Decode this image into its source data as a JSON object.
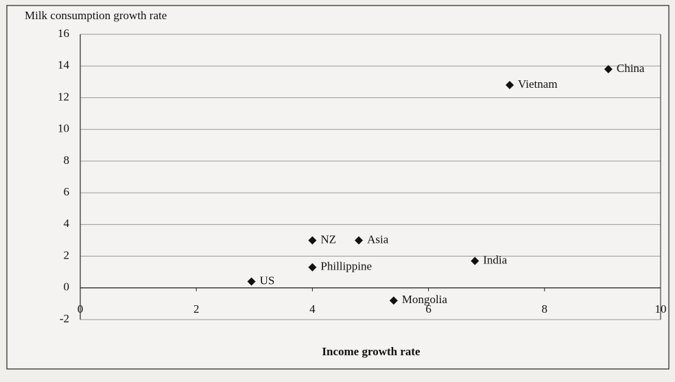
{
  "chart_data": {
    "type": "scatter",
    "y_label": "Milk consumption growth rate",
    "x_label": "Income growth rate",
    "point_labels": [
      "China",
      "Vietnam",
      "NZ",
      "Asia",
      "India",
      "Phillippine",
      "US",
      "Mongolia"
    ],
    "x": [
      9.1,
      7.4,
      4.0,
      4.8,
      6.8,
      4.0,
      2.95,
      5.4
    ],
    "values": [
      13.8,
      12.8,
      3.0,
      3.0,
      1.7,
      1.3,
      0.4,
      -0.8
    ],
    "color": "#111111",
    "xlim": [
      0,
      10
    ],
    "xticks": [
      0,
      2,
      4,
      6,
      8,
      10
    ],
    "ylim": [
      -2,
      16
    ],
    "yticks": [
      -2,
      0,
      2,
      4,
      6,
      8,
      10,
      12,
      14,
      16
    ],
    "grid": true
  }
}
